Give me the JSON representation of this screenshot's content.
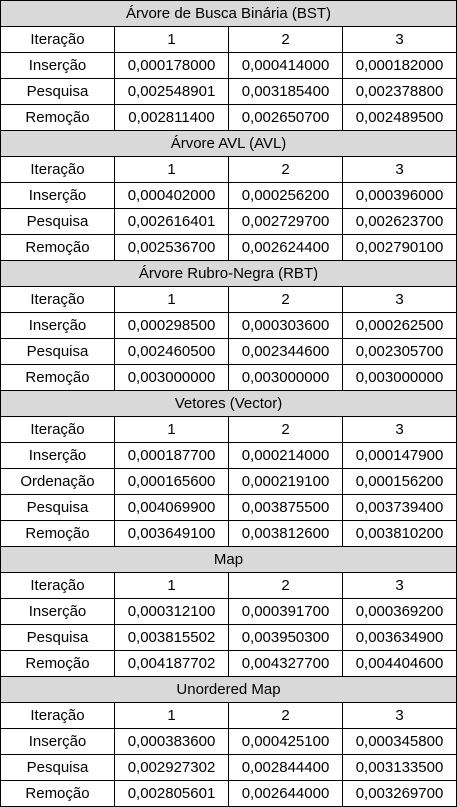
{
  "sections": [
    {
      "title": "Árvore de Busca Binária (BST)",
      "header": [
        "Iteração",
        "1",
        "2",
        "3"
      ],
      "rows": [
        [
          "Inserção",
          "0,000178000",
          "0,000414000",
          "0,000182000"
        ],
        [
          "Pesquisa",
          "0,002548901",
          "0,003185400",
          "0,002378800"
        ],
        [
          "Remoção",
          "0,002811400",
          "0,002650700",
          "0,002489500"
        ]
      ]
    },
    {
      "title": "Árvore AVL (AVL)",
      "header": [
        "Iteração",
        "1",
        "2",
        "3"
      ],
      "rows": [
        [
          "Inserção",
          "0,000402000",
          "0,000256200",
          "0,000396000"
        ],
        [
          "Pesquisa",
          "0,002616401",
          "0,002729700",
          "0,002623700"
        ],
        [
          "Remoção",
          "0,002536700",
          "0,002624400",
          "0,002790100"
        ]
      ]
    },
    {
      "title": "Árvore Rubro-Negra (RBT)",
      "header": [
        "Iteração",
        "1",
        "2",
        "3"
      ],
      "rows": [
        [
          "Inserção",
          "0,000298500",
          "0,000303600",
          "0,000262500"
        ],
        [
          "Pesquisa",
          "0,002460500",
          "0,002344600",
          "0,002305700"
        ],
        [
          "Remoção",
          "0,003000000",
          "0,003000000",
          "0,003000000"
        ]
      ]
    },
    {
      "title": "Vetores (Vector)",
      "header": [
        "Iteração",
        "1",
        "2",
        "3"
      ],
      "rows": [
        [
          "Inserção",
          "0,000187700",
          "0,000214000",
          "0,000147900"
        ],
        [
          "Ordenação",
          "0,000165600",
          "0,000219100",
          "0,000156200"
        ],
        [
          "Pesquisa",
          "0,004069900",
          "0,003875500",
          "0,003739400"
        ],
        [
          "Remoção",
          "0,003649100",
          "0,003812600",
          "0,003810200"
        ]
      ]
    },
    {
      "title": "Map",
      "header": [
        "Iteração",
        "1",
        "2",
        "3"
      ],
      "rows": [
        [
          "Inserção",
          "0,000312100",
          "0,000391700",
          "0,000369200"
        ],
        [
          "Pesquisa",
          "0,003815502",
          "0,003950300",
          "0,003634900"
        ],
        [
          "Remoção",
          "0,004187702",
          "0,004327700",
          "0,004404600"
        ]
      ]
    },
    {
      "title": "Unordered Map",
      "header": [
        "Iteração",
        "1",
        "2",
        "3"
      ],
      "rows": [
        [
          "Inserção",
          "0,000383600",
          "0,000425100",
          "0,000345800"
        ],
        [
          "Pesquisa",
          "0,002927302",
          "0,002844400",
          "0,003133500"
        ],
        [
          "Remoção",
          "0,002805601",
          "0,002644000",
          "0,003269700"
        ]
      ]
    }
  ]
}
